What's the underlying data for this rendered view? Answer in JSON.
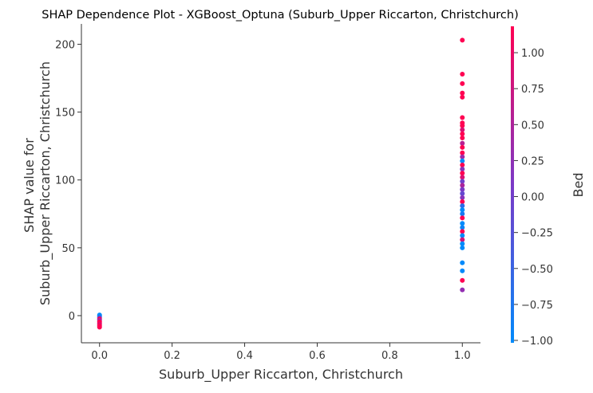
{
  "chart_data": {
    "type": "scatter",
    "title": "SHAP Dependence Plot - XGBoost_Optuna (Suburb_Upper Riccarton, Christchurch)",
    "xlabel": "Suburb_Upper Riccarton, Christchurch",
    "ylabel_line1": "SHAP value for",
    "ylabel_line2": "Suburb_Upper Riccarton, Christchurch",
    "xlim": [
      -0.05,
      1.05
    ],
    "ylim": [
      -20,
      215
    ],
    "x_ticks": [
      0.0,
      0.2,
      0.4,
      0.6,
      0.8,
      1.0
    ],
    "x_tick_labels": [
      "0.0",
      "0.2",
      "0.4",
      "0.6",
      "0.8",
      "1.0"
    ],
    "y_ticks": [
      0,
      50,
      100,
      150,
      200
    ],
    "y_tick_labels": [
      "0",
      "50",
      "100",
      "150",
      "200"
    ],
    "colorbar": {
      "label": "Bed",
      "range": [
        -1.0,
        1.2
      ],
      "ticks": [
        1.0,
        0.75,
        0.5,
        0.25,
        0.0,
        -0.25,
        -0.5,
        -0.75,
        -1.0
      ],
      "tick_labels": [
        "1.00",
        "0.75",
        "0.50",
        "0.25",
        "0.00",
        "−0.25",
        "−0.50",
        "−0.75",
        "−1.00"
      ],
      "colors": [
        "#008afb",
        "#7b39c7",
        "#ff0052"
      ]
    },
    "points": [
      {
        "x": 0.0,
        "y": 0.5,
        "c": -1.0
      },
      {
        "x": 0.0,
        "y": -0.5,
        "c": -1.0
      },
      {
        "x": 0.0,
        "y": -1.5,
        "c": -0.2
      },
      {
        "x": 0.0,
        "y": -2.5,
        "c": 1.2
      },
      {
        "x": 0.0,
        "y": -3.5,
        "c": 0.3
      },
      {
        "x": 0.0,
        "y": -4.5,
        "c": 1.2
      },
      {
        "x": 0.0,
        "y": -5.5,
        "c": 1.2
      },
      {
        "x": 0.0,
        "y": -6.5,
        "c": 0.9
      },
      {
        "x": 0.0,
        "y": -7.5,
        "c": 1.2
      },
      {
        "x": 0.0,
        "y": -8.5,
        "c": 1.2
      },
      {
        "x": 1.0,
        "y": 203,
        "c": 1.2
      },
      {
        "x": 1.0,
        "y": 178,
        "c": 1.2
      },
      {
        "x": 1.0,
        "y": 171,
        "c": 1.2
      },
      {
        "x": 1.0,
        "y": 164,
        "c": 1.2
      },
      {
        "x": 1.0,
        "y": 161,
        "c": 1.2
      },
      {
        "x": 1.0,
        "y": 146,
        "c": 1.2
      },
      {
        "x": 1.0,
        "y": 142,
        "c": 1.2
      },
      {
        "x": 1.0,
        "y": 140,
        "c": 1.2
      },
      {
        "x": 1.0,
        "y": 137,
        "c": 0.9
      },
      {
        "x": 1.0,
        "y": 134,
        "c": 1.2
      },
      {
        "x": 1.0,
        "y": 131,
        "c": 1.2
      },
      {
        "x": 1.0,
        "y": 127,
        "c": 0.6
      },
      {
        "x": 1.0,
        "y": 124,
        "c": 1.2
      },
      {
        "x": 1.0,
        "y": 120,
        "c": 1.2
      },
      {
        "x": 1.0,
        "y": 117,
        "c": 0.4
      },
      {
        "x": 1.0,
        "y": 114,
        "c": -1.0
      },
      {
        "x": 1.0,
        "y": 111,
        "c": 1.2
      },
      {
        "x": 1.0,
        "y": 108,
        "c": 0.2
      },
      {
        "x": 1.0,
        "y": 105,
        "c": 1.2
      },
      {
        "x": 1.0,
        "y": 102,
        "c": 0.9
      },
      {
        "x": 1.0,
        "y": 99,
        "c": 0.0
      },
      {
        "x": 1.0,
        "y": 96,
        "c": 0.5
      },
      {
        "x": 1.0,
        "y": 93,
        "c": 0.1
      },
      {
        "x": 1.0,
        "y": 90,
        "c": -0.1
      },
      {
        "x": 1.0,
        "y": 87,
        "c": 0.2
      },
      {
        "x": 1.0,
        "y": 84,
        "c": 1.2
      },
      {
        "x": 1.0,
        "y": 81,
        "c": -0.6
      },
      {
        "x": 1.0,
        "y": 78,
        "c": -1.0
      },
      {
        "x": 1.0,
        "y": 75,
        "c": -0.8
      },
      {
        "x": 1.0,
        "y": 72,
        "c": 1.2
      },
      {
        "x": 1.0,
        "y": 68,
        "c": -1.0
      },
      {
        "x": 1.0,
        "y": 65,
        "c": -0.9
      },
      {
        "x": 1.0,
        "y": 62,
        "c": 1.2
      },
      {
        "x": 1.0,
        "y": 59,
        "c": -1.0
      },
      {
        "x": 1.0,
        "y": 56,
        "c": 0.8
      },
      {
        "x": 1.0,
        "y": 53,
        "c": -1.0
      },
      {
        "x": 1.0,
        "y": 50,
        "c": -1.0
      },
      {
        "x": 1.0,
        "y": 39,
        "c": -1.0
      },
      {
        "x": 1.0,
        "y": 33,
        "c": -1.0
      },
      {
        "x": 1.0,
        "y": 26,
        "c": 1.2
      },
      {
        "x": 1.0,
        "y": 19,
        "c": 0.3
      }
    ]
  }
}
